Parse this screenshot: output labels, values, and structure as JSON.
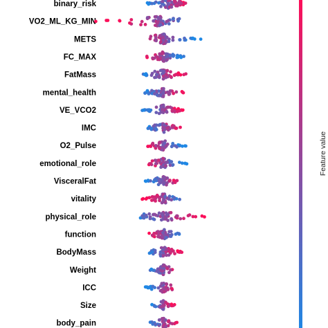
{
  "chart_data": {
    "type": "scatter",
    "title": "",
    "xlabel": "",
    "ylabel": "",
    "xlim": [
      -3.2,
      3.5
    ],
    "colors": {
      "low": "#1E88E5",
      "high": "#FF0D57"
    },
    "colorbar": {
      "title": "Feature value"
    },
    "features": [
      "binary_risk",
      "VO2_ML_KG_MIN",
      "METS",
      "FC_MAX",
      "FatMass",
      "mental_health",
      "VE_VCO2",
      "IMC",
      "O2_Pulse",
      "emotional_role",
      "VisceralFat",
      "vitality",
      "physical_role",
      "function",
      "BodyMass",
      "Weight",
      "ICC",
      "Size",
      "body_pain"
    ],
    "series": [
      {
        "feature": "binary_risk",
        "center": 0.2,
        "spread_neg": 0.9,
        "spread_pos": 0.8,
        "low_side": "left",
        "count": 70
      },
      {
        "feature": "VO2_ML_KG_MIN",
        "center": -0.2,
        "spread_neg": 2.9,
        "spread_pos": 0.9,
        "low_side": "right",
        "count": 70
      },
      {
        "feature": "METS",
        "center": 0.0,
        "spread_neg": 0.6,
        "spread_pos": 1.6,
        "low_side": "right",
        "count": 70
      },
      {
        "feature": "FC_MAX",
        "center": 0.0,
        "spread_neg": 0.7,
        "spread_pos": 0.9,
        "low_side": "right",
        "count": 65
      },
      {
        "feature": "FatMass",
        "center": 0.0,
        "spread_neg": 0.9,
        "spread_pos": 1.0,
        "low_side": "left",
        "count": 60
      },
      {
        "feature": "mental_health",
        "center": 0.0,
        "spread_neg": 0.8,
        "spread_pos": 1.0,
        "low_side": "left",
        "count": 55
      },
      {
        "feature": "VE_VCO2",
        "center": 0.0,
        "spread_neg": 0.9,
        "spread_pos": 0.9,
        "low_side": "left",
        "count": 55
      },
      {
        "feature": "IMC",
        "center": 0.0,
        "spread_neg": 0.7,
        "spread_pos": 0.8,
        "low_side": "left",
        "count": 55
      },
      {
        "feature": "O2_Pulse",
        "center": 0.0,
        "spread_neg": 0.7,
        "spread_pos": 1.0,
        "low_side": "right",
        "count": 55
      },
      {
        "feature": "emotional_role",
        "center": 0.0,
        "spread_neg": 0.7,
        "spread_pos": 1.0,
        "low_side": "right",
        "count": 55
      },
      {
        "feature": "VisceralFat",
        "center": 0.0,
        "spread_neg": 0.8,
        "spread_pos": 0.6,
        "low_side": "left",
        "count": 50
      },
      {
        "feature": "vitality",
        "center": 0.0,
        "spread_neg": 0.9,
        "spread_pos": 0.7,
        "low_side": "right",
        "count": 50
      },
      {
        "feature": "physical_role",
        "center": 0.0,
        "spread_neg": 1.0,
        "spread_pos": 1.8,
        "low_side": "left",
        "count": 60
      },
      {
        "feature": "function",
        "center": 0.0,
        "spread_neg": 0.6,
        "spread_pos": 0.8,
        "low_side": "right",
        "count": 50
      },
      {
        "feature": "BodyMass",
        "center": 0.0,
        "spread_neg": 0.6,
        "spread_pos": 0.8,
        "low_side": "left",
        "count": 50
      },
      {
        "feature": "Weight",
        "center": 0.0,
        "spread_neg": 0.6,
        "spread_pos": 0.6,
        "low_side": "left",
        "count": 45
      },
      {
        "feature": "ICC",
        "center": 0.0,
        "spread_neg": 0.8,
        "spread_pos": 0.4,
        "low_side": "left",
        "count": 40
      },
      {
        "feature": "Size",
        "center": 0.0,
        "spread_neg": 0.5,
        "spread_pos": 0.5,
        "low_side": "left",
        "count": 40
      },
      {
        "feature": "body_pain",
        "center": 0.0,
        "spread_neg": 0.6,
        "spread_pos": 0.6,
        "low_side": "left",
        "count": 40
      }
    ]
  }
}
